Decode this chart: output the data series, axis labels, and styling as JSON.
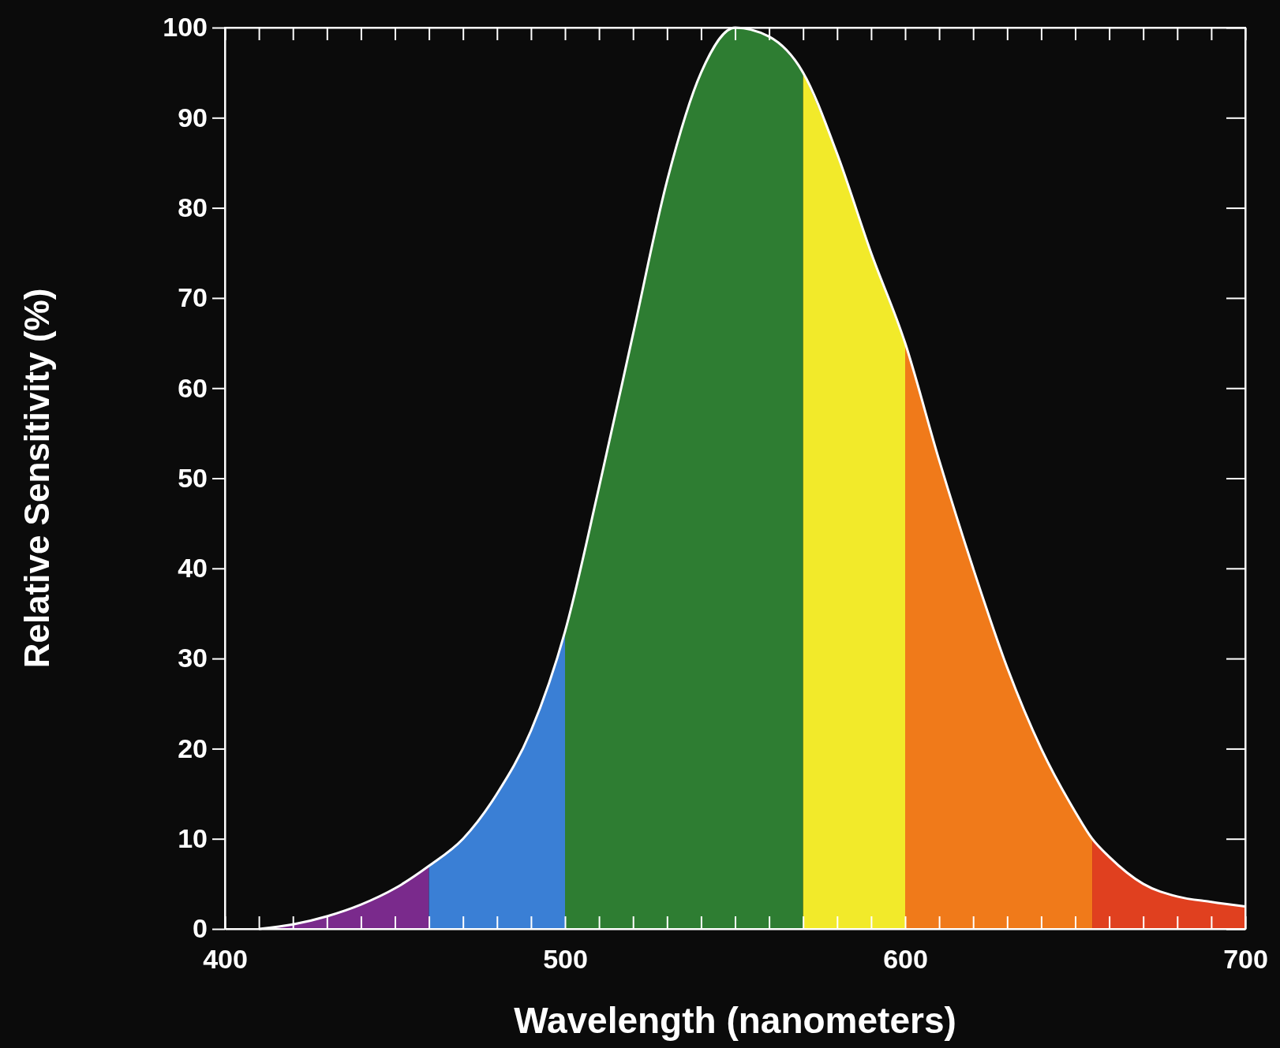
{
  "chart_data": {
    "type": "area",
    "xlabel": "Wavelength (nanometers)",
    "ylabel": "Relative Sensitivity (%)",
    "xlim": [
      400,
      700
    ],
    "ylim": [
      0,
      100
    ],
    "xticks": [
      400,
      {
        "value": 410,
        "label": null
      },
      {
        "value": 420,
        "label": null
      },
      {
        "value": 430,
        "label": null
      },
      {
        "value": 440,
        "label": null
      },
      {
        "value": 450,
        "label": null
      },
      {
        "value": 460,
        "label": null
      },
      {
        "value": 470,
        "label": null
      },
      {
        "value": 480,
        "label": null
      },
      {
        "value": 490,
        "label": null
      },
      500,
      {
        "value": 510,
        "label": null
      },
      {
        "value": 520,
        "label": null
      },
      {
        "value": 530,
        "label": null
      },
      {
        "value": 540,
        "label": null
      },
      {
        "value": 550,
        "label": null
      },
      {
        "value": 560,
        "label": null
      },
      {
        "value": 570,
        "label": null
      },
      {
        "value": 580,
        "label": null
      },
      {
        "value": 590,
        "label": null
      },
      600,
      {
        "value": 610,
        "label": null
      },
      {
        "value": 620,
        "label": null
      },
      {
        "value": 630,
        "label": null
      },
      {
        "value": 640,
        "label": null
      },
      {
        "value": 650,
        "label": null
      },
      {
        "value": 660,
        "label": null
      },
      {
        "value": 670,
        "label": null
      },
      {
        "value": 680,
        "label": null
      },
      {
        "value": 690,
        "label": null
      },
      700
    ],
    "yticks": [
      0,
      10,
      20,
      30,
      40,
      50,
      60,
      70,
      80,
      90,
      100
    ],
    "grid": false,
    "series": [
      {
        "color": "#7a2a8c",
        "x": [
          410,
          420,
          430,
          440,
          450,
          460
        ],
        "values": [
          0,
          0.5,
          1.4,
          2.7,
          4.5,
          7
        ]
      },
      {
        "color": "#3a7fd5",
        "x": [
          460,
          470,
          480,
          490,
          500
        ],
        "values": [
          7,
          10,
          15,
          22,
          33
        ]
      },
      {
        "color": "#2e7d32",
        "x": [
          500,
          510,
          520,
          530,
          540,
          550,
          560,
          570
        ],
        "values": [
          33,
          49,
          66,
          83,
          95,
          100,
          99,
          95
        ]
      },
      {
        "color": "#f2ea2a",
        "x": [
          570,
          580,
          590,
          600
        ],
        "values": [
          95,
          86,
          75,
          65
        ]
      },
      {
        "color": "#f07a1a",
        "x": [
          600,
          610,
          620,
          630,
          640,
          650,
          655
        ],
        "values": [
          65,
          52,
          40,
          29,
          20,
          13,
          10
        ]
      },
      {
        "color": "#e0401f",
        "x": [
          655,
          660,
          670,
          680,
          690,
          700
        ],
        "values": [
          10,
          8,
          5,
          3.6,
          3,
          2.5
        ]
      },
      {
        "type": "line",
        "color": "#ffffff",
        "x": [
          410,
          420,
          430,
          440,
          450,
          460,
          470,
          480,
          490,
          500,
          510,
          520,
          530,
          540,
          550,
          560,
          570,
          580,
          590,
          600,
          610,
          620,
          630,
          640,
          650,
          655,
          660,
          670,
          680,
          690,
          700
        ],
        "values": [
          0,
          0.5,
          1.4,
          2.7,
          4.5,
          7,
          10,
          15,
          22,
          33,
          49,
          66,
          83,
          95,
          100,
          99,
          95,
          86,
          75,
          65,
          52,
          40,
          29,
          20,
          13,
          10,
          8,
          5,
          3.6,
          3,
          2.5
        ]
      }
    ]
  }
}
